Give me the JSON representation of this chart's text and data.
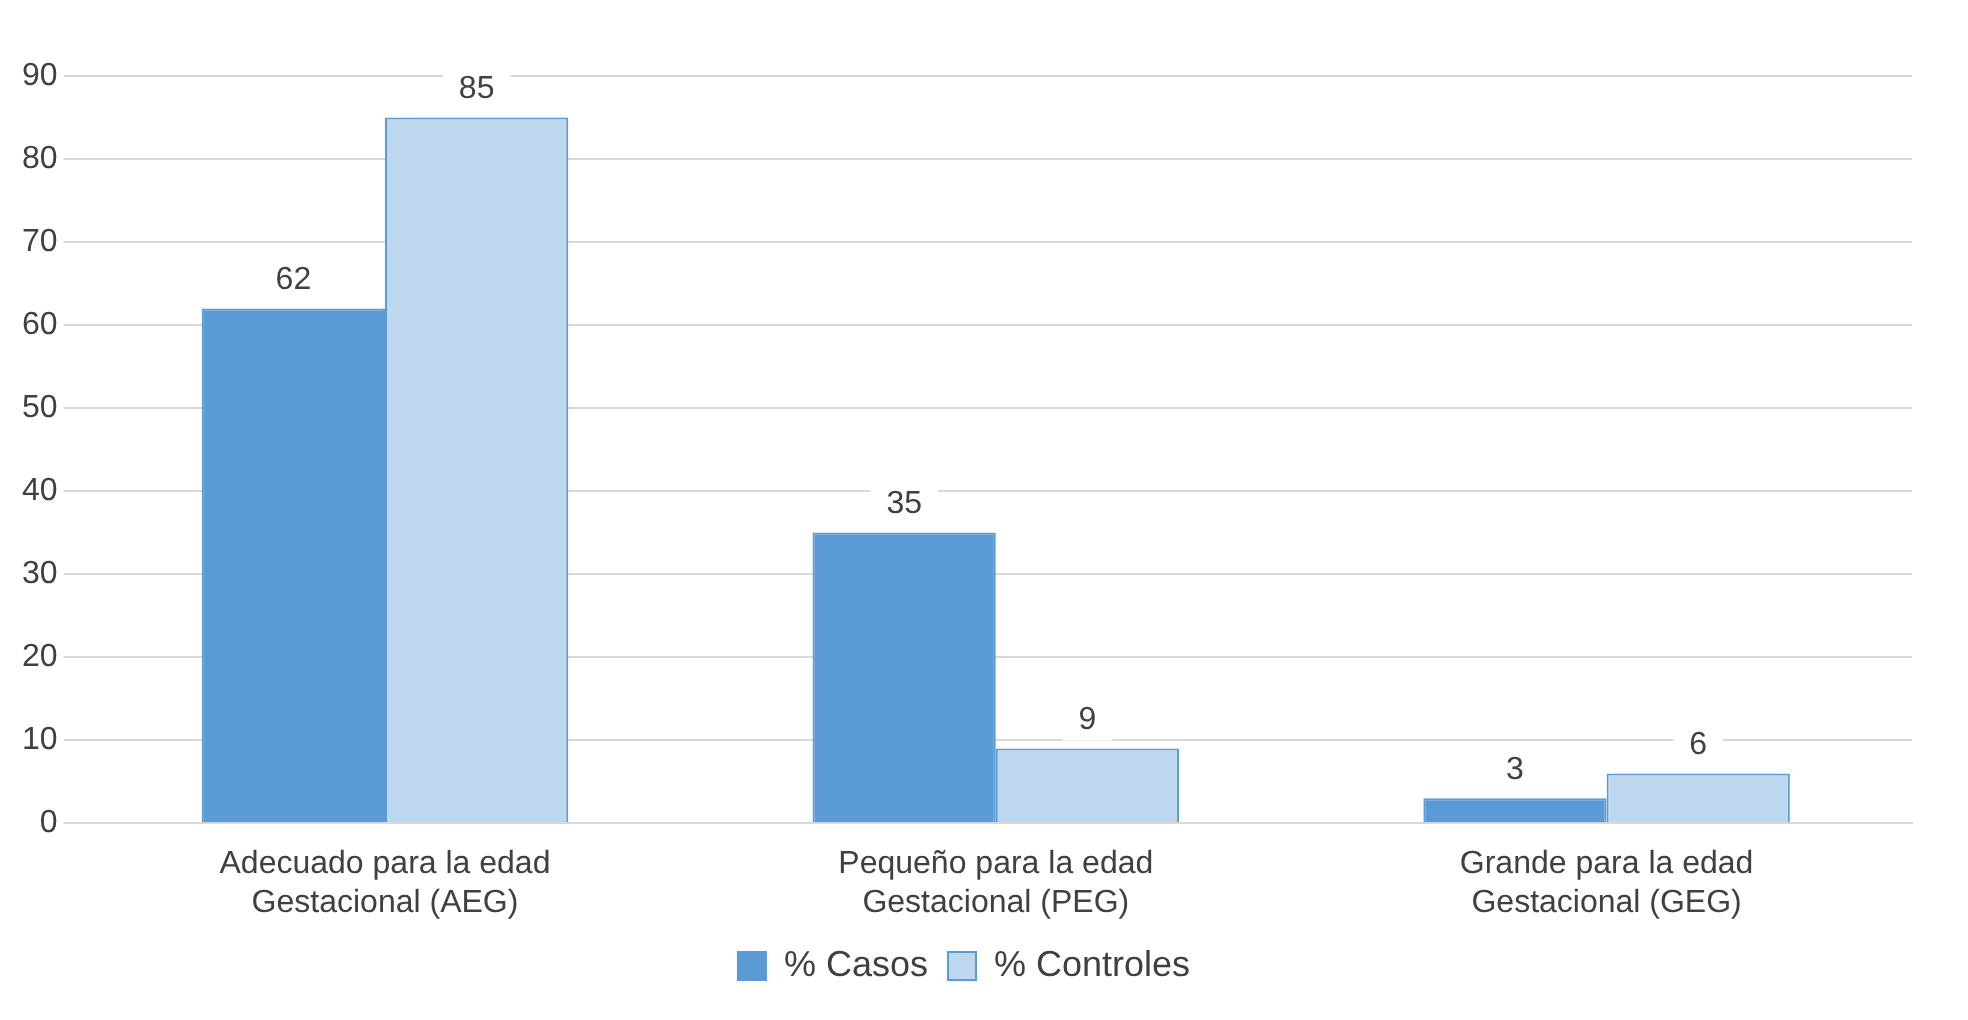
{
  "chart_data": {
    "type": "bar",
    "categories": [
      "Adecuado para la edad Gestacional (AEG)",
      "Pequeño para la edad Gestacional (PEG)",
      "Grande para la edad Gestacional (GEG)"
    ],
    "series": [
      {
        "name": "% Casos",
        "color": "#5b9bd5",
        "values": [
          62,
          35,
          3
        ]
      },
      {
        "name": "% Controles",
        "color": "#bdd7ee",
        "values": [
          85,
          9,
          6
        ]
      }
    ],
    "ylim": [
      0,
      90
    ],
    "yticks": [
      0,
      10,
      20,
      30,
      40,
      50,
      60,
      70,
      80,
      90
    ],
    "grid": "y",
    "legend": "bottom",
    "data_labels": true
  }
}
